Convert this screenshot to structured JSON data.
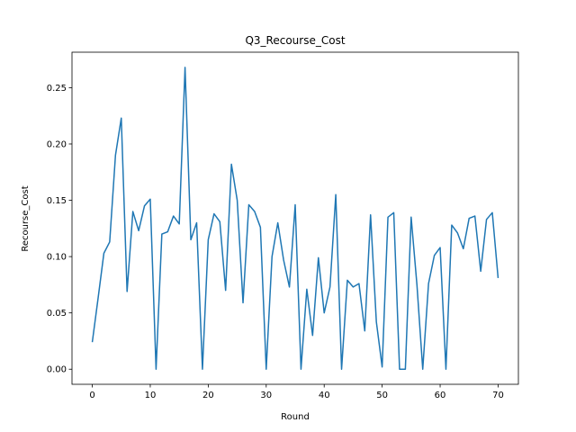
{
  "chart_data": {
    "type": "line",
    "title": "Q3_Recourse_Cost",
    "xlabel": "Round",
    "ylabel": "Recourse_Cost",
    "xlim": [
      -3.5,
      73.5
    ],
    "ylim": [
      -0.0134,
      0.2815
    ],
    "xticks": [
      0,
      10,
      20,
      30,
      40,
      50,
      60,
      70
    ],
    "yticks": [
      0.0,
      0.05,
      0.1,
      0.15,
      0.2,
      0.25
    ],
    "ytick_labels": [
      "0.00",
      "0.05",
      "0.10",
      "0.15",
      "0.20",
      "0.25"
    ],
    "grid": false,
    "legend": "none",
    "series": [
      {
        "color": "#1f77b4",
        "x": [
          0,
          1,
          2,
          3,
          4,
          5,
          6,
          7,
          8,
          9,
          10,
          11,
          12,
          13,
          14,
          15,
          16,
          17,
          18,
          19,
          20,
          21,
          22,
          23,
          24,
          25,
          26,
          27,
          28,
          29,
          30,
          31,
          32,
          33,
          34,
          35,
          36,
          37,
          38,
          39,
          40,
          41,
          42,
          43,
          44,
          45,
          46,
          47,
          48,
          49,
          50,
          51,
          52,
          53,
          54,
          55,
          56,
          57,
          58,
          59,
          60,
          61,
          62,
          63,
          64,
          65,
          66,
          67,
          68,
          69,
          70
        ],
        "values": [
          0.024,
          0.063,
          0.103,
          0.113,
          0.19,
          0.223,
          0.069,
          0.14,
          0.123,
          0.145,
          0.151,
          0.0,
          0.12,
          0.122,
          0.136,
          0.129,
          0.268,
          0.115,
          0.13,
          0.0,
          0.115,
          0.138,
          0.131,
          0.07,
          0.182,
          0.15,
          0.059,
          0.146,
          0.14,
          0.126,
          0.0,
          0.1,
          0.13,
          0.097,
          0.073,
          0.146,
          0.0,
          0.071,
          0.03,
          0.099,
          0.05,
          0.073,
          0.155,
          0.0,
          0.079,
          0.073,
          0.076,
          0.034,
          0.137,
          0.042,
          0.002,
          0.135,
          0.139,
          0.0,
          0.0,
          0.135,
          0.075,
          0.0,
          0.076,
          0.101,
          0.108,
          0.0,
          0.128,
          0.121,
          0.107,
          0.134,
          0.136,
          0.087,
          0.133,
          0.139,
          0.081
        ]
      }
    ]
  }
}
